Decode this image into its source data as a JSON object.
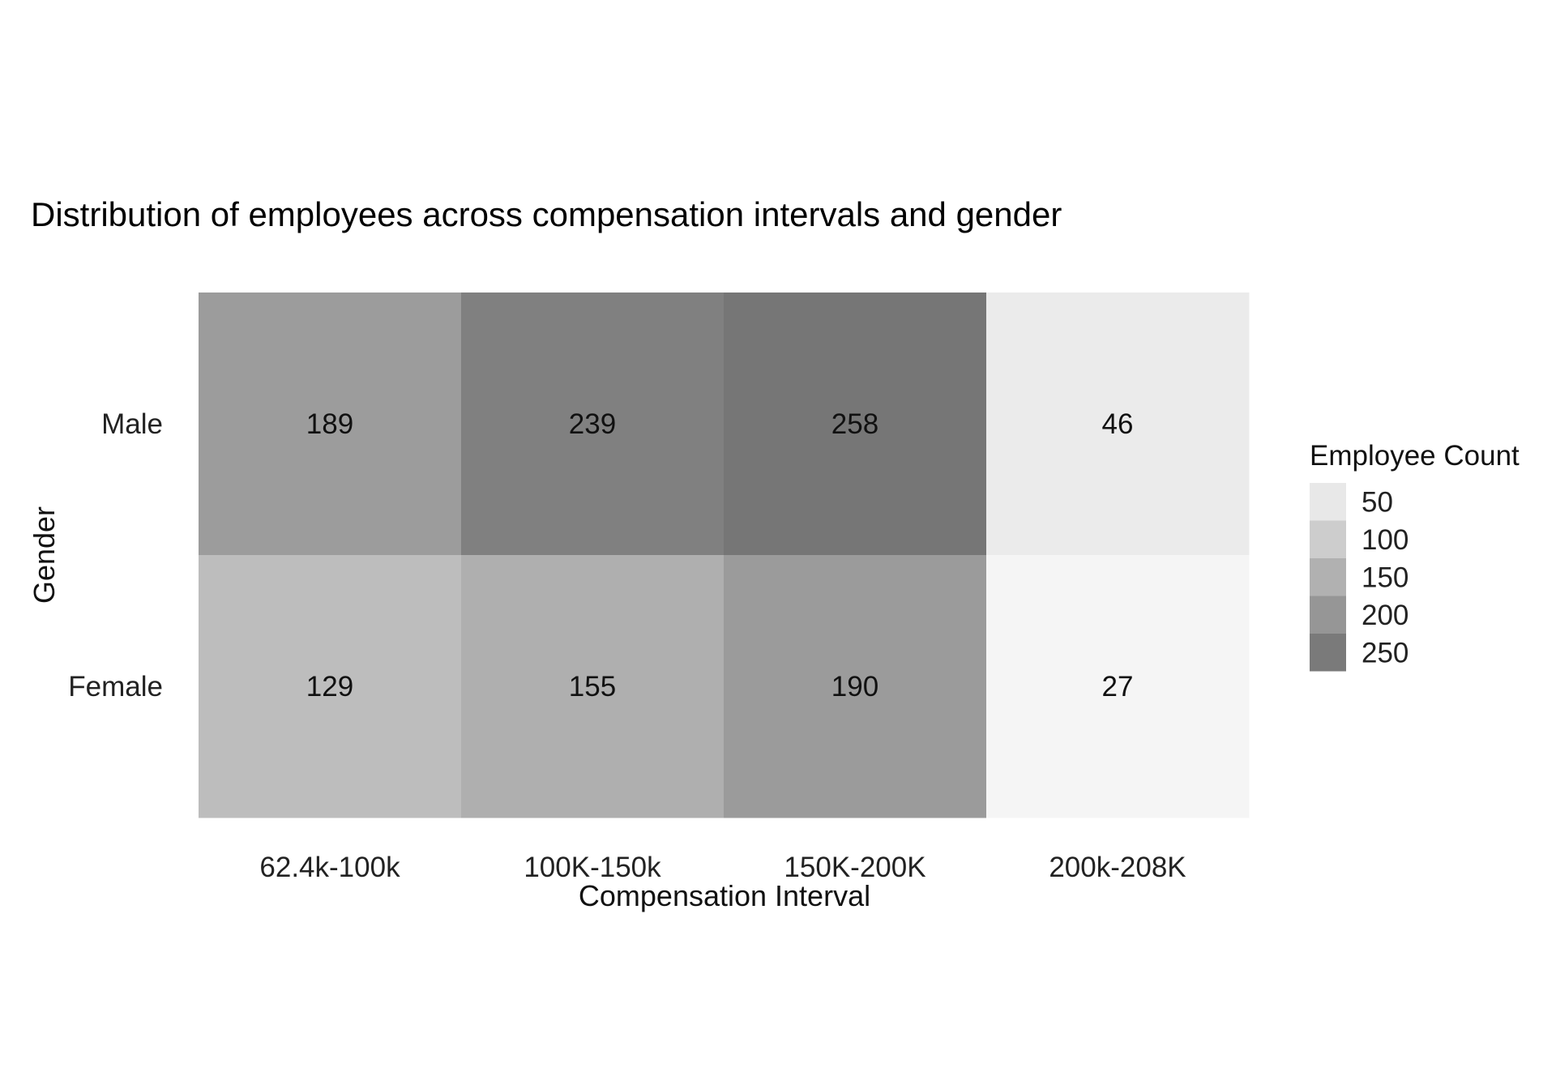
{
  "chart_data": {
    "type": "heatmap",
    "title": "Distribution of employees across compensation intervals and gender",
    "xlabel": "Compensation Interval",
    "ylabel": "Gender",
    "x_categories": [
      "62.4k-100k",
      "100K-150k",
      "150K-200K",
      "200k-208K"
    ],
    "y_categories": [
      "Male",
      "Female"
    ],
    "values": [
      [
        189,
        239,
        258,
        46
      ],
      [
        129,
        155,
        190,
        27
      ]
    ],
    "color_scale": {
      "low_value": 27,
      "high_value": 258,
      "low_color": "#f5f5f5",
      "high_color": "#767676"
    },
    "legend": {
      "title": "Employee Count",
      "position": "right",
      "breaks": [
        50,
        100,
        150,
        200,
        250
      ]
    },
    "grid": false
  }
}
